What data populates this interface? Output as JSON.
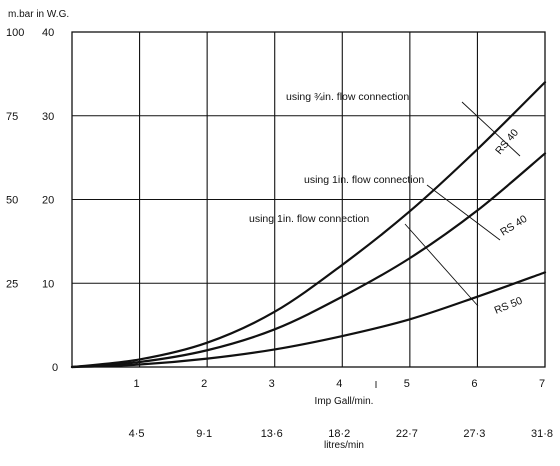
{
  "chart_data": {
    "type": "line",
    "ylabel": "m.bar in W.G.",
    "xlabel": "Imp Gall/min.",
    "x2label": "litres/min",
    "xlim": [
      0,
      7
    ],
    "ylim": [
      0,
      40
    ],
    "x_ticks": [
      "1",
      "2",
      "3",
      "4",
      "5",
      "6",
      "7"
    ],
    "x2_ticks": [
      "4·5",
      "9·1",
      "13·6",
      "18·2",
      "22·7",
      "27·3",
      "31·8"
    ],
    "y_ticks_mbar": [
      "25",
      "50",
      "75",
      "100"
    ],
    "y_ticks_wg": [
      "10",
      "20",
      "30",
      "40"
    ],
    "grid": true,
    "series": [
      {
        "name": "RS 40",
        "annotation": "using ¾in. flow connection",
        "x": [
          0,
          1,
          2,
          3,
          4,
          5,
          6,
          7
        ],
        "y": [
          0,
          0.9,
          2.9,
          6.6,
          12.2,
          18.6,
          26.0,
          34.0
        ]
      },
      {
        "name": "RS 40",
        "annotation": "using 1in. flow connection",
        "x": [
          0,
          1,
          2,
          3,
          4,
          5,
          6,
          7
        ],
        "y": [
          0,
          0.6,
          2.0,
          4.5,
          8.4,
          13.0,
          18.7,
          25.5
        ]
      },
      {
        "name": "RS 50",
        "annotation": "using 1in. flow connection",
        "x": [
          0,
          1,
          2,
          3,
          4,
          5,
          6,
          7
        ],
        "y": [
          0,
          0.3,
          1.0,
          2.1,
          3.7,
          5.7,
          8.4,
          11.3
        ]
      }
    ]
  }
}
